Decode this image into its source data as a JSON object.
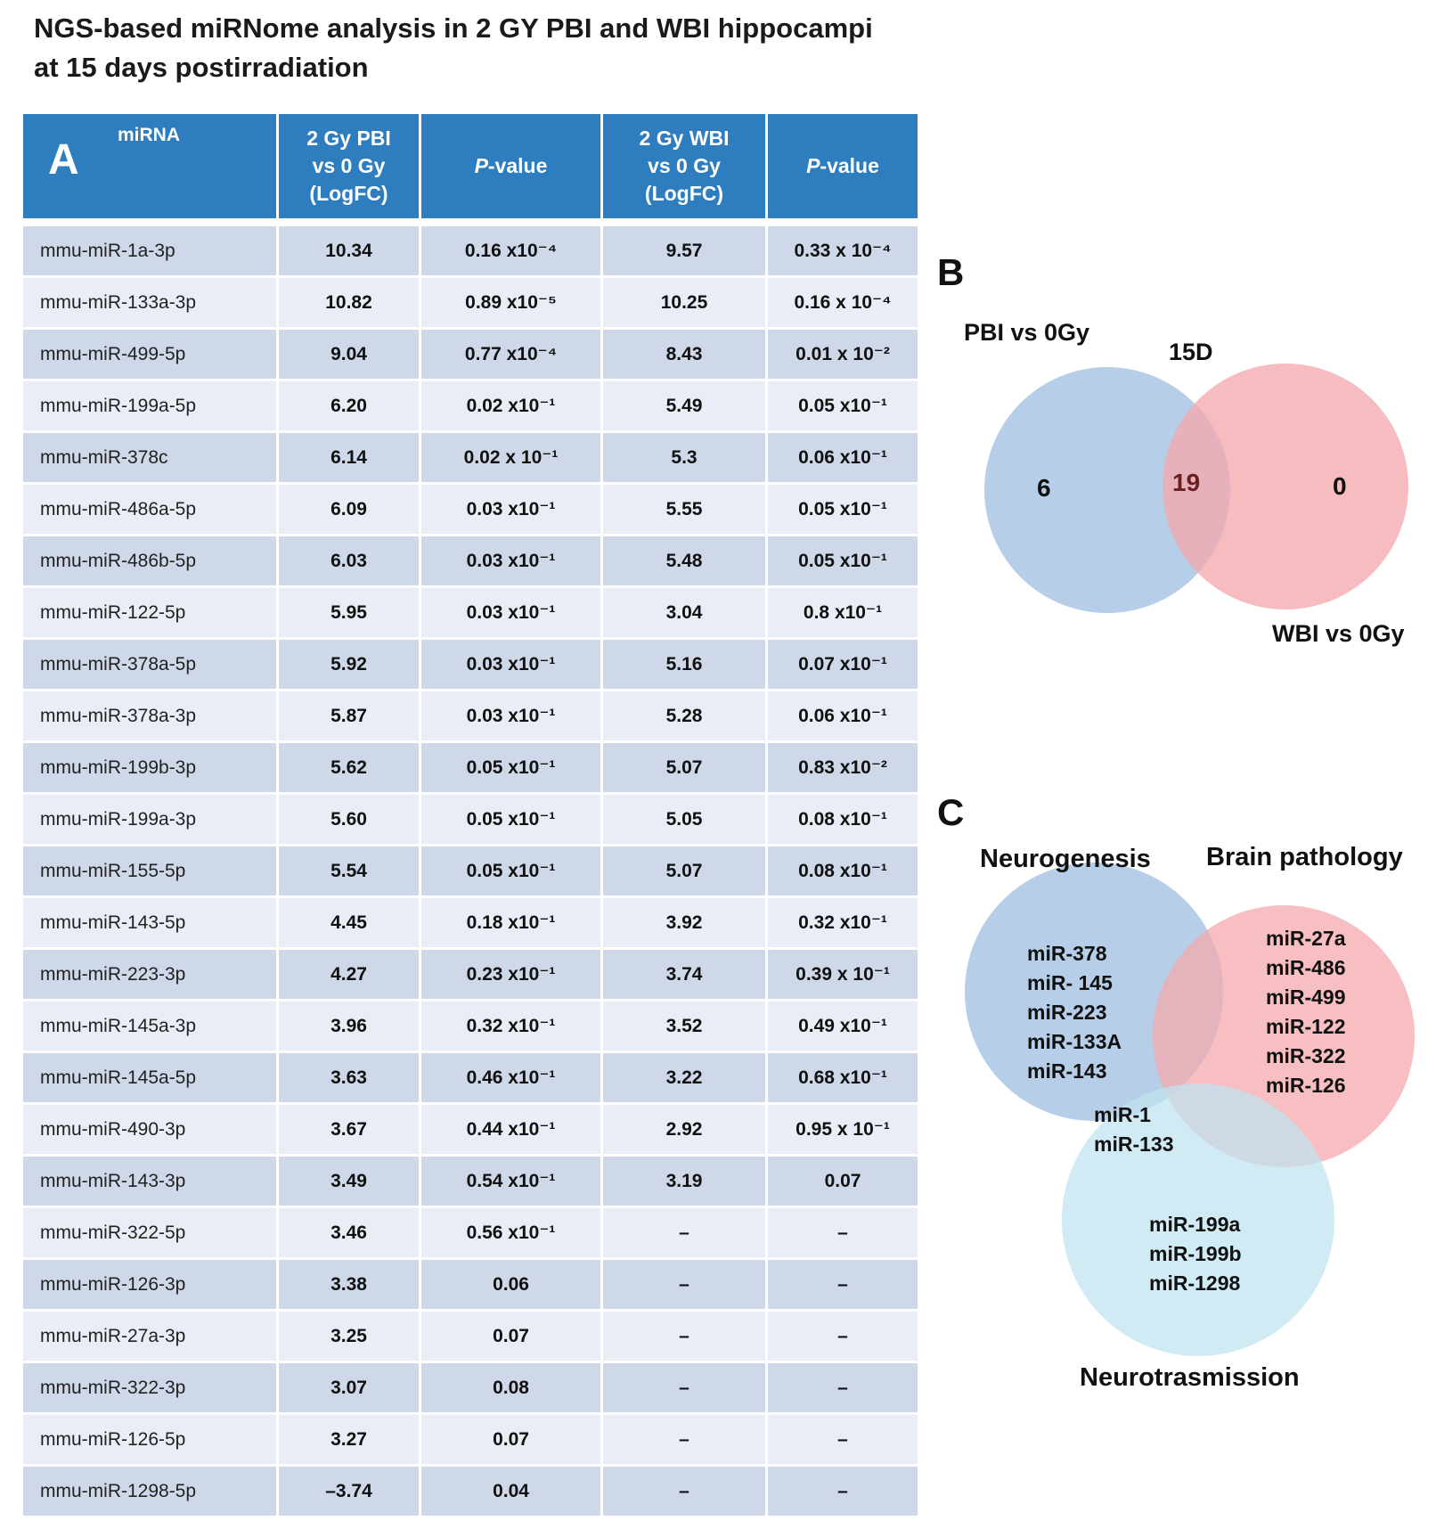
{
  "title": {
    "line1": "NGS-based miRNome analysis in 2 GY PBI and WBI hippocampi",
    "line2": "at 15 days postirradiation"
  },
  "table": {
    "panel_label": "A",
    "headers": {
      "mirna": "miRNA",
      "pbi_logfc": [
        "2 Gy PBI",
        "vs 0 Gy",
        "(LogFC)"
      ],
      "pbi_pvalue_italic": "P",
      "pbi_pvalue_rest": "-value",
      "wbi_logfc": [
        "2 Gy WBI",
        "vs 0 Gy",
        "(LogFC)"
      ],
      "wbi_pvalue_italic": "P",
      "wbi_pvalue_rest": "-value"
    },
    "rows": [
      {
        "mirna": "mmu-miR-1a-3p",
        "pbi_logfc": "10.34",
        "pbi_p": "0.16 x10⁻⁴",
        "wbi_logfc": "9.57",
        "wbi_p": "0.33 x 10⁻⁴"
      },
      {
        "mirna": "mmu-miR-133a-3p",
        "pbi_logfc": "10.82",
        "pbi_p": "0.89 x10⁻⁵",
        "wbi_logfc": "10.25",
        "wbi_p": "0.16 x 10⁻⁴"
      },
      {
        "mirna": "mmu-miR-499-5p",
        "pbi_logfc": "9.04",
        "pbi_p": "0.77 x10⁻⁴",
        "wbi_logfc": "8.43",
        "wbi_p": "0.01 x 10⁻²"
      },
      {
        "mirna": "mmu-miR-199a-5p",
        "pbi_logfc": "6.20",
        "pbi_p": "0.02 x10⁻¹",
        "wbi_logfc": "5.49",
        "wbi_p": "0.05 x10⁻¹"
      },
      {
        "mirna": "mmu-miR-378c",
        "pbi_logfc": "6.14",
        "pbi_p": "0.02 x 10⁻¹",
        "wbi_logfc": "5.3",
        "wbi_p": "0.06 x10⁻¹"
      },
      {
        "mirna": "mmu-miR-486a-5p",
        "pbi_logfc": "6.09",
        "pbi_p": "0.03 x10⁻¹",
        "wbi_logfc": "5.55",
        "wbi_p": "0.05 x10⁻¹"
      },
      {
        "mirna": "mmu-miR-486b-5p",
        "pbi_logfc": "6.03",
        "pbi_p": "0.03 x10⁻¹",
        "wbi_logfc": "5.48",
        "wbi_p": "0.05 x10⁻¹"
      },
      {
        "mirna": "mmu-miR-122-5p",
        "pbi_logfc": "5.95",
        "pbi_p": "0.03 x10⁻¹",
        "wbi_logfc": "3.04",
        "wbi_p": "0.8 x10⁻¹"
      },
      {
        "mirna": "mmu-miR-378a-5p",
        "pbi_logfc": "5.92",
        "pbi_p": "0.03 x10⁻¹",
        "wbi_logfc": "5.16",
        "wbi_p": "0.07 x10⁻¹"
      },
      {
        "mirna": "mmu-miR-378a-3p",
        "pbi_logfc": "5.87",
        "pbi_p": "0.03 x10⁻¹",
        "wbi_logfc": "5.28",
        "wbi_p": "0.06 x10⁻¹"
      },
      {
        "mirna": "mmu-miR-199b-3p",
        "pbi_logfc": "5.62",
        "pbi_p": "0.05 x10⁻¹",
        "wbi_logfc": "5.07",
        "wbi_p": "0.83 x10⁻²"
      },
      {
        "mirna": "mmu-miR-199a-3p",
        "pbi_logfc": "5.60",
        "pbi_p": "0.05 x10⁻¹",
        "wbi_logfc": "5.05",
        "wbi_p": "0.08 x10⁻¹"
      },
      {
        "mirna": "mmu-miR-155-5p",
        "pbi_logfc": "5.54",
        "pbi_p": "0.05 x10⁻¹",
        "wbi_logfc": "5.07",
        "wbi_p": "0.08 x10⁻¹"
      },
      {
        "mirna": "mmu-miR-143-5p",
        "pbi_logfc": "4.45",
        "pbi_p": "0.18 x10⁻¹",
        "wbi_logfc": "3.92",
        "wbi_p": "0.32 x10⁻¹"
      },
      {
        "mirna": "mmu-miR-223-3p",
        "pbi_logfc": "4.27",
        "pbi_p": "0.23 x10⁻¹",
        "wbi_logfc": "3.74",
        "wbi_p": "0.39  x 10⁻¹"
      },
      {
        "mirna": "mmu-miR-145a-3p",
        "pbi_logfc": "3.96",
        "pbi_p": "0.32 x10⁻¹",
        "wbi_logfc": "3.52",
        "wbi_p": "0.49 x10⁻¹"
      },
      {
        "mirna": "mmu-miR-145a-5p",
        "pbi_logfc": "3.63",
        "pbi_p": "0.46 x10⁻¹",
        "wbi_logfc": "3.22",
        "wbi_p": "0.68 x10⁻¹"
      },
      {
        "mirna": "mmu-miR-490-3p",
        "pbi_logfc": "3.67",
        "pbi_p": "0.44 x10⁻¹",
        "wbi_logfc": "2.92",
        "wbi_p": "0.95 x 10⁻¹"
      },
      {
        "mirna": "mmu-miR-143-3p",
        "pbi_logfc": "3.49",
        "pbi_p": "0.54 x10⁻¹",
        "wbi_logfc": "3.19",
        "wbi_p": "0.07"
      },
      {
        "mirna": "mmu-miR-322-5p",
        "pbi_logfc": "3.46",
        "pbi_p": "0.56 x10⁻¹",
        "wbi_logfc": "–",
        "wbi_p": "–"
      },
      {
        "mirna": "mmu-miR-126-3p",
        "pbi_logfc": "3.38",
        "pbi_p": "0.06",
        "wbi_logfc": "–",
        "wbi_p": "–"
      },
      {
        "mirna": "mmu-miR-27a-3p",
        "pbi_logfc": "3.25",
        "pbi_p": "0.07",
        "wbi_logfc": "–",
        "wbi_p": "–"
      },
      {
        "mirna": "mmu-miR-322-3p",
        "pbi_logfc": "3.07",
        "pbi_p": "0.08",
        "wbi_logfc": "–",
        "wbi_p": "–"
      },
      {
        "mirna": "mmu-miR-126-5p",
        "pbi_logfc": "3.27",
        "pbi_p": "0.07",
        "wbi_logfc": "–",
        "wbi_p": "–"
      },
      {
        "mirna": "mmu-miR-1298-5p",
        "pbi_logfc": "–3.74",
        "pbi_p": "0.04",
        "wbi_logfc": "–",
        "wbi_p": "–"
      }
    ]
  },
  "venn_b": {
    "panel_label": "B",
    "left_label": "PBI vs 0Gy",
    "right_label": "WBI vs 0Gy",
    "timepoint": "15D",
    "left_only": "6",
    "overlap": "19",
    "right_only": "0",
    "colors": {
      "left": "#a9c6e3",
      "right": "#f4a9ad",
      "overlap_text": "#6b1f1f"
    }
  },
  "venn_c": {
    "panel_label": "C",
    "set_neurogenesis": "Neurogenesis",
    "set_brain_pathology": "Brain pathology",
    "set_neurotransmission": "Neurotrasmission",
    "neurogenesis_only": [
      "miR-378",
      "miR- 145",
      "miR-223",
      "miR-133A",
      "miR-143"
    ],
    "brain_pathology_only": [
      "miR-27a",
      "miR-486",
      "miR-499",
      "miR-122",
      "miR-322",
      "miR-126"
    ],
    "neurogenesis_neurotransmission": [
      "miR-1",
      "miR-133"
    ],
    "neurotransmission_only": [
      "miR-199a",
      "miR-199b",
      "miR-1298"
    ],
    "colors": {
      "neurogenesis": "#a9c6e3",
      "brain_pathology": "#f4a9ad",
      "neurotransmission": "#bfe3f0"
    }
  }
}
